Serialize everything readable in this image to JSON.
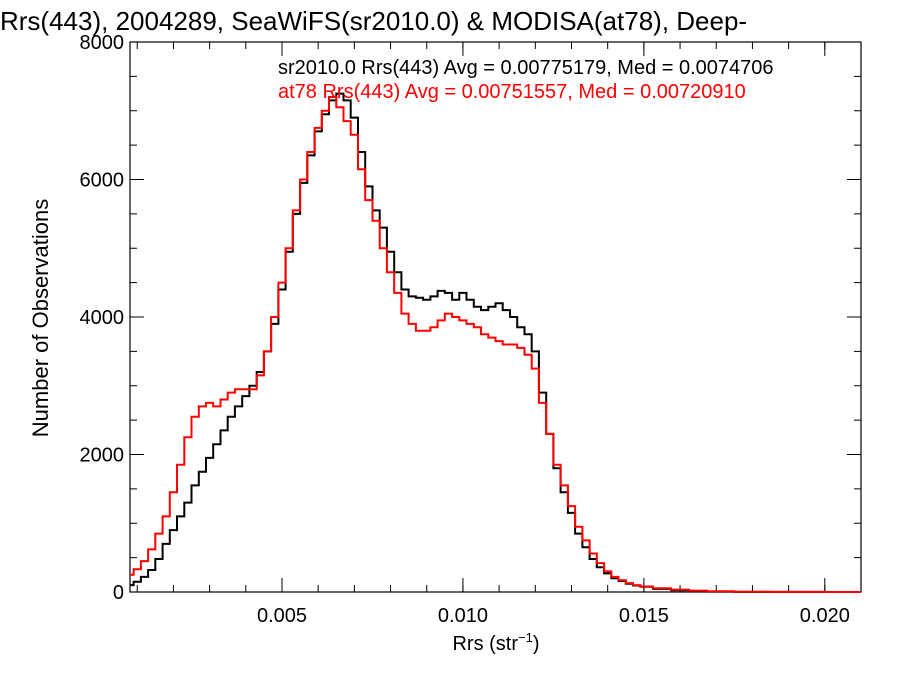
{
  "chart_data": {
    "type": "line",
    "title": "Rrs(443), 2004289, SeaWiFS(sr2010.0) & MODISA(at78), Deep-",
    "xlabel": "Rrs (str",
    "xlabel_sup": "−1",
    "xlabel_close": ")",
    "ylabel": "Number of Observations",
    "xlim": [
      0.0008,
      0.021
    ],
    "ylim": [
      0,
      8000
    ],
    "x_ticks": [
      0.005,
      0.01,
      0.015,
      0.02
    ],
    "x_tick_labels": [
      "0.005",
      "0.010",
      "0.015",
      "0.020"
    ],
    "y_ticks": [
      0,
      2000,
      4000,
      6000,
      8000
    ],
    "y_tick_labels": [
      "0",
      "2000",
      "4000",
      "6000",
      "8000"
    ],
    "grid": false,
    "legend_position": "top-right",
    "series": [
      {
        "name": "sr2010.0",
        "label": "sr2010.0 Rrs(443) Avg = 0.00775179, Med = 0.0074706",
        "color": "#000000",
        "points": [
          [
            0.0008,
            100
          ],
          [
            0.001,
            150
          ],
          [
            0.0012,
            220
          ],
          [
            0.0014,
            320
          ],
          [
            0.0016,
            480
          ],
          [
            0.0018,
            700
          ],
          [
            0.002,
            900
          ],
          [
            0.0022,
            1100
          ],
          [
            0.0024,
            1300
          ],
          [
            0.0026,
            1550
          ],
          [
            0.0028,
            1750
          ],
          [
            0.003,
            1950
          ],
          [
            0.0032,
            2150
          ],
          [
            0.0034,
            2350
          ],
          [
            0.0036,
            2550
          ],
          [
            0.0038,
            2700
          ],
          [
            0.004,
            2850
          ],
          [
            0.0042,
            3000
          ],
          [
            0.0044,
            3200
          ],
          [
            0.0046,
            3500
          ],
          [
            0.0048,
            3900
          ],
          [
            0.005,
            4400
          ],
          [
            0.0052,
            4950
          ],
          [
            0.0054,
            5500
          ],
          [
            0.0056,
            5950
          ],
          [
            0.0058,
            6350
          ],
          [
            0.006,
            6700
          ],
          [
            0.0062,
            6950
          ],
          [
            0.0064,
            7150
          ],
          [
            0.0066,
            7250
          ],
          [
            0.0068,
            7150
          ],
          [
            0.007,
            6900
          ],
          [
            0.0072,
            6400
          ],
          [
            0.0074,
            5900
          ],
          [
            0.0076,
            5550
          ],
          [
            0.0078,
            5300
          ],
          [
            0.008,
            4950
          ],
          [
            0.0082,
            4650
          ],
          [
            0.0084,
            4400
          ],
          [
            0.0086,
            4300
          ],
          [
            0.0088,
            4280
          ],
          [
            0.009,
            4250
          ],
          [
            0.0092,
            4300
          ],
          [
            0.0094,
            4380
          ],
          [
            0.0096,
            4350
          ],
          [
            0.0098,
            4250
          ],
          [
            0.01,
            4350
          ],
          [
            0.0102,
            4250
          ],
          [
            0.0104,
            4150
          ],
          [
            0.0106,
            4100
          ],
          [
            0.0108,
            4150
          ],
          [
            0.011,
            4200
          ],
          [
            0.0112,
            4100
          ],
          [
            0.0114,
            4000
          ],
          [
            0.0116,
            3850
          ],
          [
            0.0118,
            3750
          ],
          [
            0.012,
            3500
          ],
          [
            0.0122,
            2900
          ],
          [
            0.0124,
            2300
          ],
          [
            0.0126,
            1800
          ],
          [
            0.0128,
            1450
          ],
          [
            0.013,
            1150
          ],
          [
            0.0132,
            850
          ],
          [
            0.0134,
            650
          ],
          [
            0.0136,
            480
          ],
          [
            0.0138,
            360
          ],
          [
            0.014,
            270
          ],
          [
            0.0142,
            200
          ],
          [
            0.0144,
            160
          ],
          [
            0.0146,
            120
          ],
          [
            0.0148,
            95
          ],
          [
            0.015,
            75
          ],
          [
            0.0155,
            45
          ],
          [
            0.016,
            25
          ],
          [
            0.0165,
            12
          ],
          [
            0.017,
            6
          ],
          [
            0.018,
            2
          ],
          [
            0.019,
            1
          ],
          [
            0.021,
            0
          ]
        ]
      },
      {
        "name": "at78",
        "label": "at78 Rrs(443) Avg = 0.00751557, Med = 0.00720910",
        "color": "#ff0000",
        "points": [
          [
            0.0008,
            250
          ],
          [
            0.001,
            330
          ],
          [
            0.0012,
            450
          ],
          [
            0.0014,
            620
          ],
          [
            0.0016,
            850
          ],
          [
            0.0018,
            1100
          ],
          [
            0.002,
            1450
          ],
          [
            0.0022,
            1850
          ],
          [
            0.0024,
            2250
          ],
          [
            0.0026,
            2550
          ],
          [
            0.0028,
            2700
          ],
          [
            0.003,
            2750
          ],
          [
            0.0032,
            2700
          ],
          [
            0.0034,
            2800
          ],
          [
            0.0036,
            2900
          ],
          [
            0.0038,
            2950
          ],
          [
            0.004,
            2950
          ],
          [
            0.0042,
            2950
          ],
          [
            0.0044,
            3150
          ],
          [
            0.0046,
            3500
          ],
          [
            0.0048,
            4000
          ],
          [
            0.005,
            4500
          ],
          [
            0.0052,
            5000
          ],
          [
            0.0054,
            5550
          ],
          [
            0.0056,
            6000
          ],
          [
            0.0058,
            6400
          ],
          [
            0.006,
            6750
          ],
          [
            0.0062,
            7000
          ],
          [
            0.0064,
            7200
          ],
          [
            0.0066,
            7050
          ],
          [
            0.0068,
            6850
          ],
          [
            0.007,
            6650
          ],
          [
            0.0072,
            6150
          ],
          [
            0.0074,
            5700
          ],
          [
            0.0076,
            5400
          ],
          [
            0.0078,
            5000
          ],
          [
            0.008,
            4650
          ],
          [
            0.0082,
            4350
          ],
          [
            0.0084,
            4050
          ],
          [
            0.0086,
            3900
          ],
          [
            0.0088,
            3800
          ],
          [
            0.009,
            3800
          ],
          [
            0.0092,
            3850
          ],
          [
            0.0094,
            3950
          ],
          [
            0.0096,
            4050
          ],
          [
            0.0098,
            4000
          ],
          [
            0.01,
            3950
          ],
          [
            0.0102,
            3900
          ],
          [
            0.0104,
            3850
          ],
          [
            0.0106,
            3750
          ],
          [
            0.0108,
            3700
          ],
          [
            0.011,
            3650
          ],
          [
            0.0112,
            3600
          ],
          [
            0.0114,
            3600
          ],
          [
            0.0116,
            3550
          ],
          [
            0.0118,
            3450
          ],
          [
            0.012,
            3250
          ],
          [
            0.0122,
            2750
          ],
          [
            0.0124,
            2300
          ],
          [
            0.0126,
            1850
          ],
          [
            0.0128,
            1550
          ],
          [
            0.013,
            1250
          ],
          [
            0.0132,
            950
          ],
          [
            0.0134,
            750
          ],
          [
            0.0136,
            560
          ],
          [
            0.0138,
            420
          ],
          [
            0.014,
            300
          ],
          [
            0.0142,
            220
          ],
          [
            0.0144,
            170
          ],
          [
            0.0146,
            130
          ],
          [
            0.0148,
            100
          ],
          [
            0.015,
            80
          ],
          [
            0.0155,
            55
          ],
          [
            0.016,
            35
          ],
          [
            0.0165,
            20
          ],
          [
            0.017,
            10
          ],
          [
            0.018,
            3
          ],
          [
            0.019,
            1
          ],
          [
            0.021,
            0
          ]
        ]
      }
    ]
  }
}
